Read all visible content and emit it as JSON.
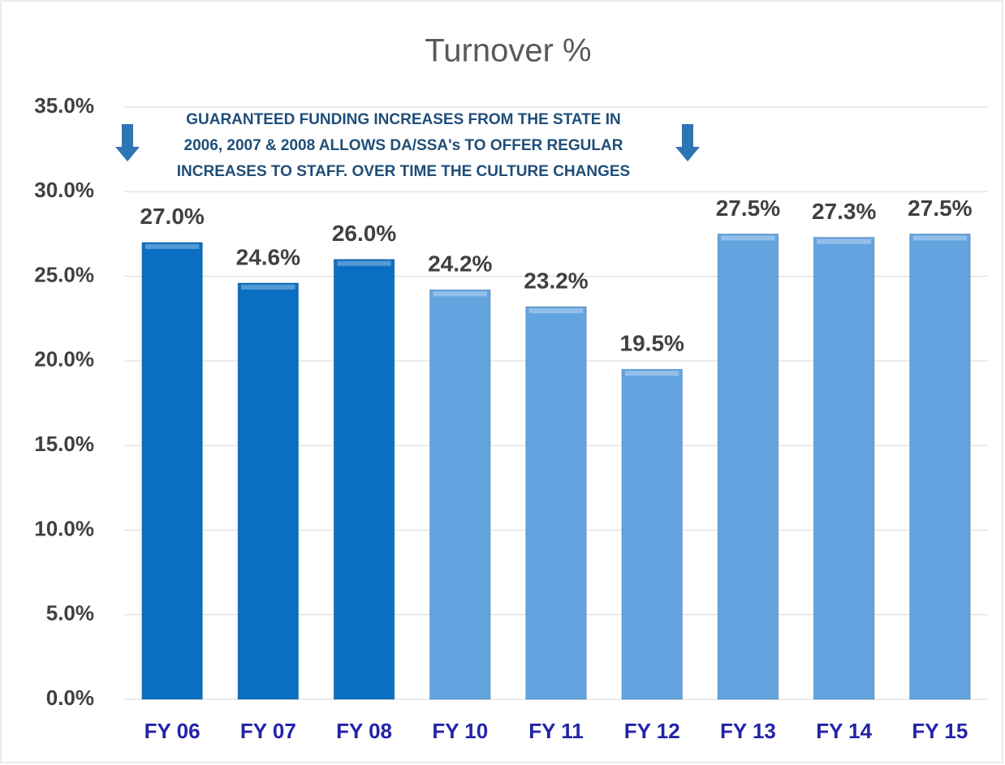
{
  "chart_data": {
    "type": "bar",
    "title": "Turnover %",
    "annotation": [
      "GUARANTEED FUNDING INCREASES FROM THE STATE IN",
      "2006, 2007 & 2008 ALLOWS DA/SSA's TO OFFER REGULAR",
      "INCREASES TO STAFF.  OVER TIME THE CULTURE CHANGES"
    ],
    "categories": [
      "FY 06",
      "FY 07",
      "FY 08",
      "FY 10",
      "FY 11",
      "FY 12",
      "FY 13",
      "FY 14",
      "FY 15"
    ],
    "values": [
      27.0,
      24.6,
      26.0,
      24.2,
      23.2,
      19.5,
      27.5,
      27.3,
      27.5
    ],
    "value_labels": [
      "27.0%",
      "24.6%",
      "26.0%",
      "24.2%",
      "23.2%",
      "19.5%",
      "27.5%",
      "27.3%",
      "27.5%"
    ],
    "colors": [
      "#0a6fc2",
      "#0a6fc2",
      "#0a6fc2",
      "#63a4e0",
      "#63a4e0",
      "#63a4e0",
      "#63a4e0",
      "#63a4e0",
      "#63a4e0"
    ],
    "ylim": [
      0,
      35
    ],
    "yticks": [
      {
        "value": 0,
        "label": "0.0%"
      },
      {
        "value": 5,
        "label": "5.0%"
      },
      {
        "value": 10,
        "label": "10.0%"
      },
      {
        "value": 15,
        "label": "15.0%"
      },
      {
        "value": 20,
        "label": "20.0%"
      },
      {
        "value": 25,
        "label": "25.0%"
      },
      {
        "value": 30,
        "label": "30.0%"
      },
      {
        "value": 35,
        "label": "35.0%"
      }
    ],
    "grid": true
  }
}
